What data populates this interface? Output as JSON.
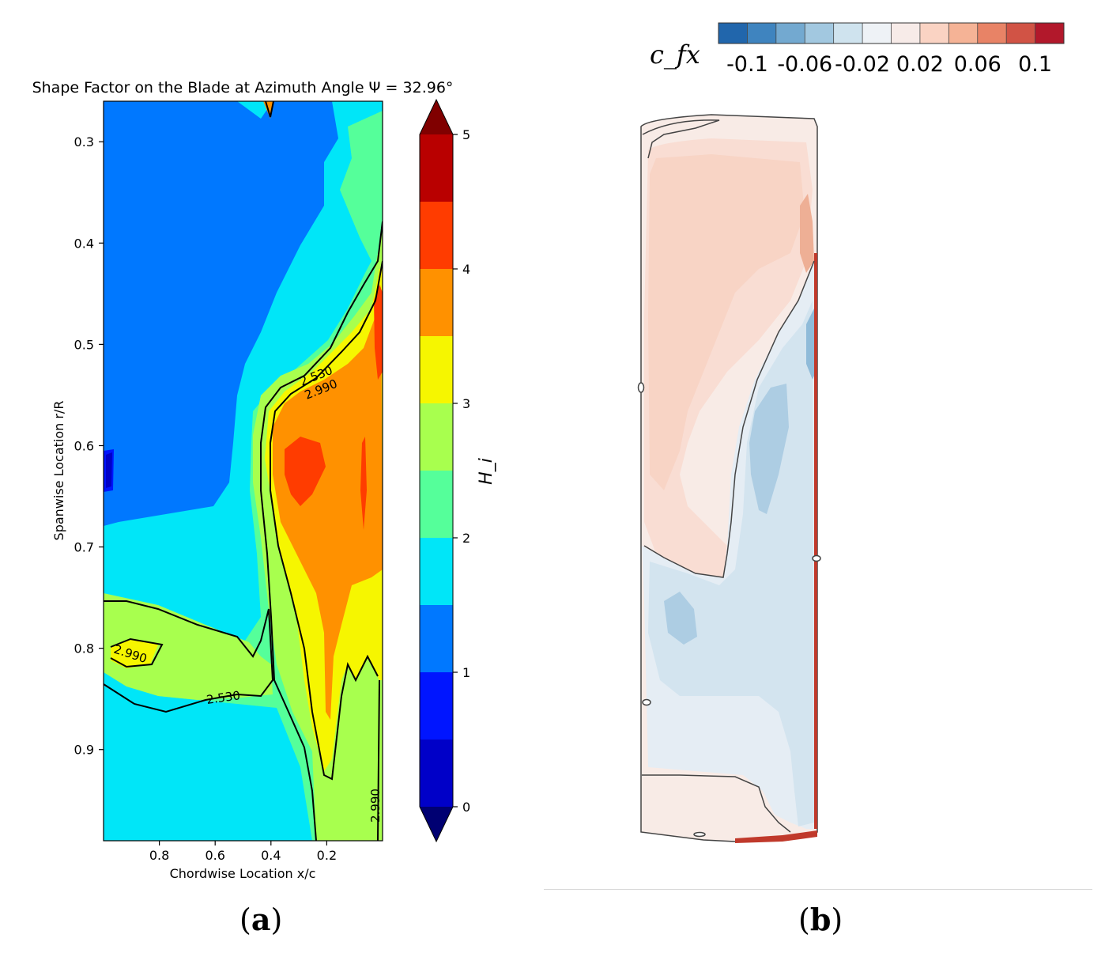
{
  "chart_data": [
    {
      "type": "heatmap",
      "title": "Shape Factor on the Blade at Azimuth Angle Ψ = 32.96°",
      "xlabel": "Chordwise Location x/c",
      "ylabel": "Spanwise Location r/R",
      "x_range": [
        1.0,
        0.0
      ],
      "x_ticks": [
        "0.8",
        "0.6",
        "0.4",
        "0.2"
      ],
      "y_range": [
        0.26,
        0.99
      ],
      "y_ticks": [
        "0.3",
        "0.4",
        "0.5",
        "0.6",
        "0.7",
        "0.8",
        "0.9"
      ],
      "colorbar": {
        "label": "H_i",
        "ticks": [
          "0",
          "1",
          "2",
          "3",
          "4",
          "5"
        ],
        "range": [
          0,
          5
        ],
        "step": 0.5,
        "colors": [
          "#0000c8",
          "#0015ff",
          "#0078ff",
          "#00e6f8",
          "#55ff9a",
          "#a8ff4e",
          "#f6f600",
          "#ff9100",
          "#ff3c00",
          "#b90000"
        ],
        "under_color": "#000072",
        "over_color": "#800000"
      },
      "contour_labels": [
        "2.530",
        "2.990",
        "2.990",
        "2.530",
        "2.990"
      ],
      "caption": "a"
    },
    {
      "type": "heatmap",
      "colorbar": {
        "label": "c_fx",
        "ticks": [
          "-0.1",
          "-0.06",
          "-0.02",
          "0.02",
          "0.06",
          "0.1"
        ],
        "range": [
          -0.12,
          0.12
        ],
        "colors": [
          "#2166ac",
          "#3f84bf",
          "#73a9d0",
          "#a2c8e0",
          "#cfe3ee",
          "#eef2f6",
          "#f7ebe8",
          "#fad3c3",
          "#f5b396",
          "#e88366",
          "#d15345",
          "#b2182b"
        ]
      },
      "caption": "b"
    }
  ]
}
